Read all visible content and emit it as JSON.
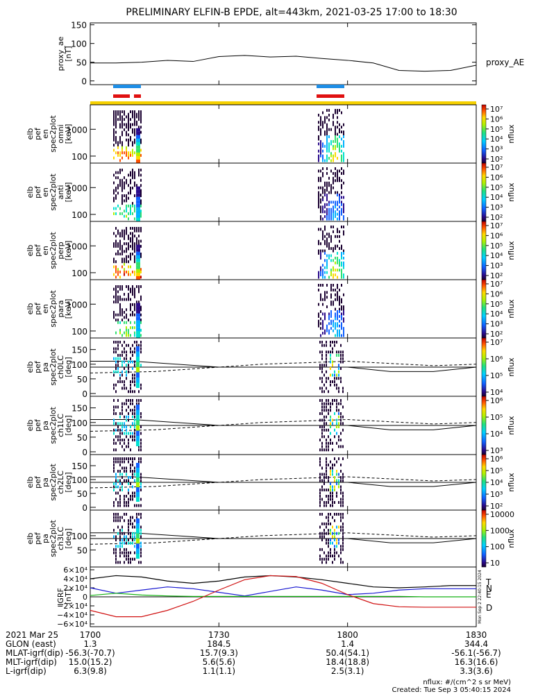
{
  "title": "PRELIMINARY ELFIN-B EPDE, alt=443km, 2021-03-25 17:00 to 18:30",
  "colors": {
    "orbit_bar": "#f5d000",
    "blue_bar": "#1e8ee6",
    "red_bar": "#e01010",
    "bx": "#1515d0",
    "by": "#10b010",
    "bz": "#d01010",
    "bt": "#000000"
  },
  "chart_data": [
    {
      "type": "line",
      "ylabel": [
        "proxy_ae",
        "[nT]"
      ],
      "yticks": [
        "150",
        "100",
        "50",
        "0"
      ],
      "ylim": [
        -10,
        155
      ],
      "legend": "proxy_AE",
      "x_minutes": [
        0,
        6,
        12,
        18,
        24,
        30,
        36,
        42,
        48,
        54,
        60,
        66,
        72,
        78,
        84,
        90
      ],
      "values": [
        48,
        48,
        50,
        55,
        52,
        65,
        68,
        64,
        66,
        60,
        55,
        48,
        28,
        26,
        28,
        42
      ]
    },
    {
      "type": "heatmap",
      "ylabel": [
        "elb",
        "pef",
        "en",
        "spec2plot",
        "omni",
        "[keV]"
      ],
      "yticks": [
        "1000",
        "100"
      ],
      "colorbar_ticks": [
        "10⁷",
        "10⁶",
        "10⁵",
        "10⁴",
        "10³",
        "10²"
      ],
      "colorbar_label": "nflux"
    },
    {
      "type": "heatmap",
      "ylabel": [
        "elb",
        "pef",
        "en",
        "spec2plot",
        "anti",
        "[keV]"
      ],
      "yticks": [
        "1000",
        "100"
      ],
      "colorbar_ticks": [
        "10⁷",
        "10⁶",
        "10⁵",
        "10⁴",
        "10³",
        "10²"
      ],
      "colorbar_label": "nflux"
    },
    {
      "type": "heatmap",
      "ylabel": [
        "elb",
        "pef",
        "en",
        "spec2plot",
        "perp",
        "[keV]"
      ],
      "yticks": [
        "1000",
        "100"
      ],
      "colorbar_ticks": [
        "10⁷",
        "10⁶",
        "10⁵",
        "10⁴",
        "10³",
        "10²"
      ],
      "colorbar_label": "nflux"
    },
    {
      "type": "heatmap",
      "ylabel": [
        "elb",
        "pef",
        "en",
        "spec2plot",
        "para",
        "[keV]"
      ],
      "yticks": [
        "1000",
        "100"
      ],
      "colorbar_ticks": [
        "10⁷",
        "10⁶",
        "10⁵",
        "10⁴",
        "10³",
        "10²"
      ],
      "colorbar_label": "nflux"
    },
    {
      "type": "heatmap",
      "ylabel": [
        "elb",
        "pef",
        "pa",
        "spec2plot",
        "ch0LC",
        "[deg]"
      ],
      "yticks": [
        "150",
        "100",
        "50",
        "0"
      ],
      "colorbar_ticks": [
        "10⁷",
        "10⁶",
        "10⁵",
        "10⁴"
      ],
      "colorbar_label": "nflux"
    },
    {
      "type": "heatmap",
      "ylabel": [
        "elb",
        "pef",
        "pa",
        "spec2plot",
        "ch1LC",
        "[deg]"
      ],
      "yticks": [
        "150",
        "100",
        "50",
        "0"
      ],
      "colorbar_ticks": [
        "10⁶",
        "10⁵",
        "10⁴",
        "10³"
      ],
      "colorbar_label": "nflux"
    },
    {
      "type": "heatmap",
      "ylabel": [
        "elb",
        "pef",
        "pa",
        "spec2plot",
        "ch2LC",
        "[deg]"
      ],
      "yticks": [
        "150",
        "100",
        "50",
        "0"
      ],
      "colorbar_ticks": [
        "10⁶",
        "10⁵",
        "10⁴",
        "10³",
        "10²"
      ],
      "colorbar_label": "nflux"
    },
    {
      "type": "heatmap",
      "ylabel": [
        "elb",
        "pef",
        "pa",
        "spec2plot",
        "ch3LC",
        "[deg]"
      ],
      "yticks": [
        "100",
        "50"
      ],
      "colorbar_ticks": [
        "10000",
        "1000",
        "100",
        "10"
      ],
      "colorbar_label": "nflux"
    },
    {
      "type": "line",
      "ylabel": [
        "IGRF",
        "[nT]"
      ],
      "yticks": [
        "6×10⁴",
        "4×10⁴",
        "2×10⁴",
        "0",
        "−2×10⁴",
        "−4×10⁴",
        "−6×10⁴"
      ],
      "ylim": [
        -60000,
        60000
      ],
      "legend": [
        "T",
        "N",
        "E",
        "D"
      ],
      "side_text": "Mon Sep 2 22:40:15 2024",
      "x_minutes": [
        0,
        6,
        12,
        18,
        24,
        30,
        36,
        42,
        48,
        54,
        60,
        66,
        72,
        78,
        84,
        90
      ],
      "series": [
        {
          "name": "T",
          "values": [
            40000,
            47000,
            44000,
            35000,
            30000,
            35000,
            44000,
            47000,
            44000,
            38000,
            30000,
            22000,
            20000,
            22000,
            25000,
            25000
          ]
        },
        {
          "name": "N",
          "values": [
            20000,
            8000,
            15000,
            22000,
            18000,
            10000,
            2000,
            12000,
            22000,
            15000,
            5000,
            8000,
            15000,
            18000,
            18000,
            18000
          ]
        },
        {
          "name": "E",
          "values": [
            3000,
            8000,
            4000,
            2000,
            1000,
            1000,
            1000,
            1000,
            1000,
            1000,
            1000,
            1000,
            1000,
            0,
            0,
            0
          ]
        },
        {
          "name": "D",
          "values": [
            -30000,
            -44000,
            -44000,
            -30000,
            -10000,
            15000,
            38000,
            47000,
            45000,
            30000,
            5000,
            -15000,
            -22000,
            -23000,
            -23000,
            -23000
          ]
        }
      ]
    }
  ],
  "xaxis": {
    "tick_labels": [
      "1700",
      "1730",
      "1800",
      "1830"
    ],
    "rows": [
      {
        "label": "2021 Mar 25",
        "values": [
          "1700",
          "1730",
          "1800",
          "1830"
        ]
      },
      {
        "label": "GLON (east)",
        "values": [
          "1.3",
          "184.5",
          "1.4",
          "344.4"
        ]
      },
      {
        "label": "MLAT-igrf(dip)",
        "values": [
          "-56.3(-70.7)",
          "15.7(9.3)",
          "50.4(54.1)",
          "-56.1(-56.7)"
        ]
      },
      {
        "label": "MLT-igrf(dip)",
        "values": [
          "15.0(15.2)",
          "5.6(5.6)",
          "18.4(18.8)",
          "16.3(16.6)"
        ]
      },
      {
        "label": "L-igrf(dip)",
        "values": [
          "6.3(9.8)",
          "1.1(1.1)",
          "2.5(3.1)",
          "3.3(3.6)"
        ]
      }
    ]
  },
  "footer": {
    "units": "nflux: #/(cm^2 s sr MeV)",
    "created": "Created: Tue Sep  3 05:40:15 2024"
  }
}
